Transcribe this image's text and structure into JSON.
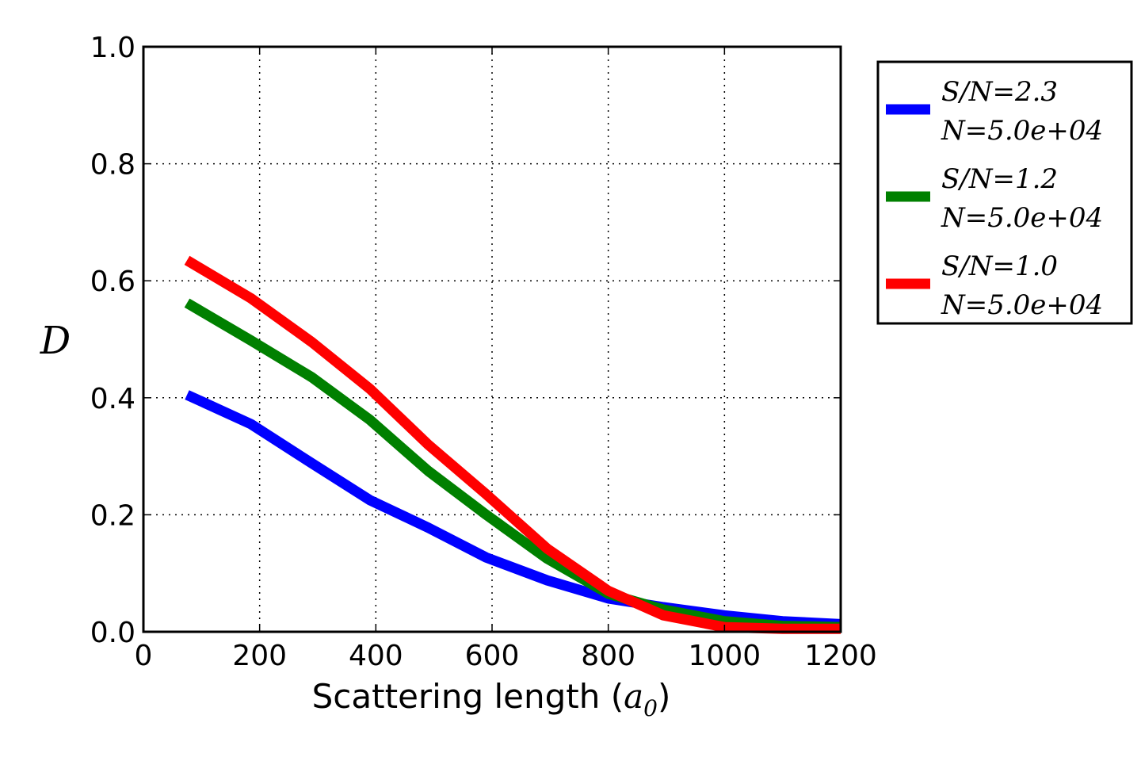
{
  "chart_data": {
    "type": "line",
    "title": "",
    "xlabel_text": "Scattering length (",
    "xlabel_math": "a",
    "xlabel_sub": "0",
    "xlabel_close": ")",
    "ylabel": "D",
    "xlim": [
      0,
      1200
    ],
    "ylim": [
      0.0,
      1.0
    ],
    "xticks": [
      "0",
      "200",
      "400",
      "600",
      "800",
      "1000",
      "1200"
    ],
    "yticks": [
      "0.0",
      "0.2",
      "0.4",
      "0.6",
      "0.8",
      "1.0"
    ],
    "grid": true,
    "legend_position": "outside-right",
    "x": [
      75,
      185,
      290,
      390,
      490,
      590,
      695,
      800,
      895,
      1000,
      1100,
      1200
    ],
    "series": [
      {
        "name_line1": "S/N=2.3",
        "name_line2": "N=5.0e+04",
        "color": "#0000ff",
        "values": [
          0.405,
          0.355,
          0.288,
          0.225,
          0.178,
          0.127,
          0.088,
          0.057,
          0.042,
          0.028,
          0.018,
          0.013
        ]
      },
      {
        "name_line1": "S/N=1.2",
        "name_line2": "N=5.0e+04",
        "color": "#008000",
        "values": [
          0.562,
          0.498,
          0.435,
          0.362,
          0.275,
          0.2,
          0.125,
          0.065,
          0.038,
          0.018,
          0.01,
          0.008
        ]
      },
      {
        "name_line1": "S/N=1.0",
        "name_line2": "N=5.0e+04",
        "color": "#ff0000",
        "values": [
          0.635,
          0.57,
          0.495,
          0.415,
          0.32,
          0.235,
          0.142,
          0.07,
          0.028,
          0.008,
          0.005,
          0.005
        ]
      }
    ]
  }
}
